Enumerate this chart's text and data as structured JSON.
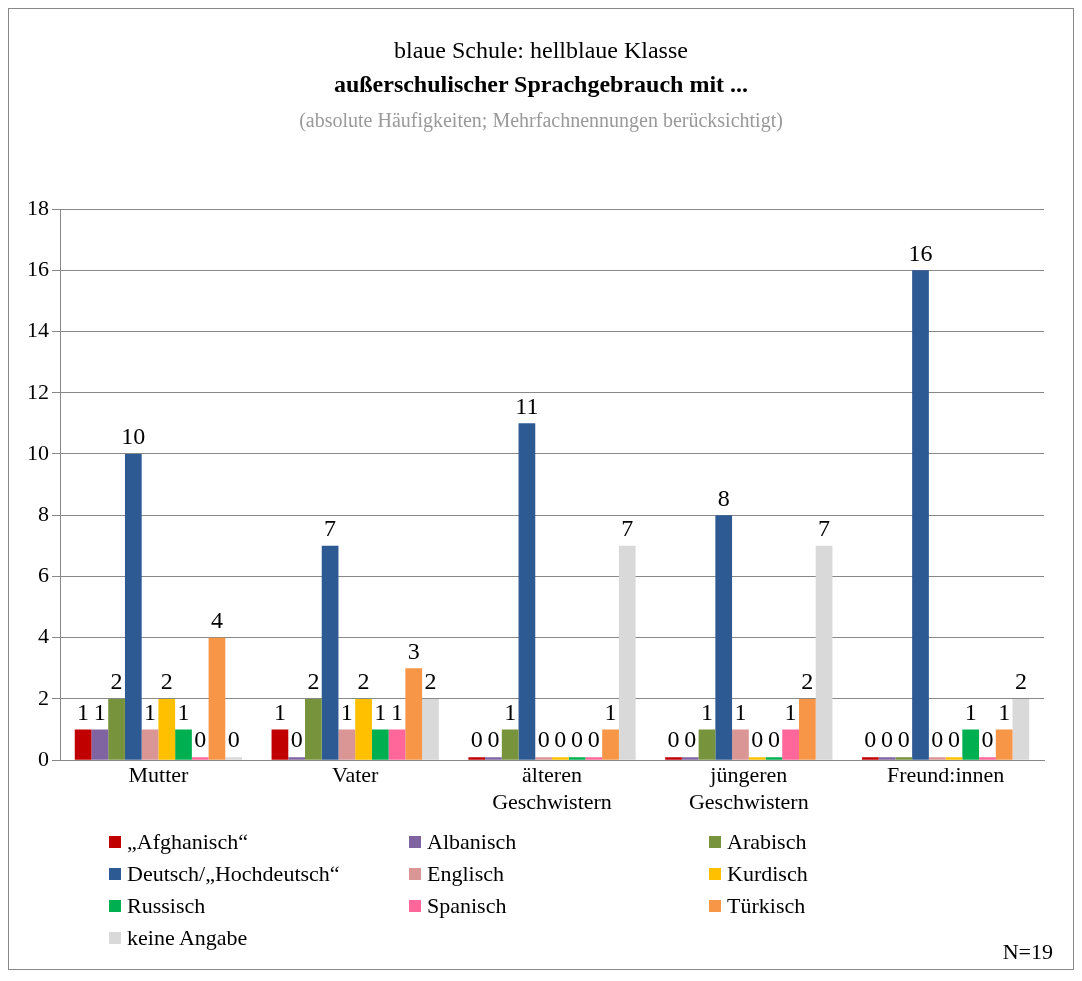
{
  "chart_data": {
    "type": "bar",
    "title": "blaue Schule: hellblaue Klasse",
    "subtitle": "außerschulischer Sprachgebrauch mit ...",
    "annotations": [
      "(absolute Häufigkeiten; Mehrfachnennungen  berücksichtigt)",
      "N=19"
    ],
    "categories": [
      "Mutter",
      "Vater",
      "älteren Geschwistern",
      "jüngeren Geschwistern",
      "Freund:innen"
    ],
    "series": [
      {
        "name": "„Afghanisch“",
        "color": "#c00000",
        "values": [
          1,
          1,
          0,
          0,
          0
        ]
      },
      {
        "name": "Albanisch",
        "color": "#8064a2",
        "values": [
          1,
          0,
          0,
          0,
          0
        ]
      },
      {
        "name": "Arabisch",
        "color": "#77933c",
        "values": [
          2,
          2,
          1,
          1,
          0
        ]
      },
      {
        "name": "Deutsch/„Hochdeutsch“",
        "color": "#2e5a93",
        "values": [
          10,
          7,
          11,
          8,
          16
        ]
      },
      {
        "name": "Englisch",
        "color": "#d99694",
        "values": [
          1,
          1,
          0,
          1,
          0
        ]
      },
      {
        "name": "Kurdisch",
        "color": "#ffc000",
        "values": [
          2,
          2,
          0,
          0,
          0
        ]
      },
      {
        "name": "Russisch",
        "color": "#00b050",
        "values": [
          1,
          1,
          0,
          0,
          1
        ]
      },
      {
        "name": "Spanisch",
        "color": "#ff6699",
        "values": [
          0,
          1,
          0,
          1,
          0
        ]
      },
      {
        "name": "Türkisch",
        "color": "#f79646",
        "values": [
          4,
          3,
          1,
          2,
          1
        ]
      },
      {
        "name": "keine Angabe",
        "color": "#d9d9d9",
        "values": [
          0,
          2,
          7,
          7,
          2
        ]
      }
    ],
    "ylim": [
      0,
      18
    ],
    "yticks": [
      0,
      2,
      4,
      6,
      8,
      10,
      12,
      14,
      16,
      18
    ],
    "grid": "y",
    "legend": "bottom",
    "data_labels": true
  }
}
